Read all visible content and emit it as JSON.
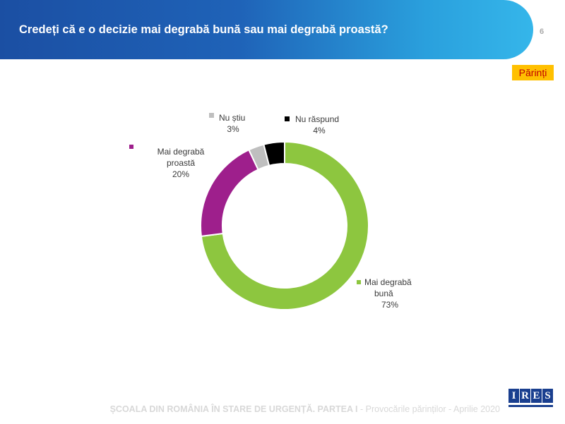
{
  "header": {
    "title": "Credeți că e o decizie mai degrabă bună sau mai degrabă proastă?",
    "page_number": "6",
    "gradient_colors": [
      "#1b4fa3",
      "#35b6ea"
    ]
  },
  "badge": {
    "label": "Părinți",
    "background": "#ffc000",
    "color": "#c00000"
  },
  "chart_data": {
    "type": "pie",
    "donut": true,
    "slices": [
      {
        "line1": "Mai degrabă",
        "line2": "bună",
        "value": 73,
        "label": "73%",
        "color": "#8dc63f"
      },
      {
        "line1": "Mai degrabă",
        "line2": "proastă",
        "value": 20,
        "label": "20%",
        "color": "#9e1f8c"
      },
      {
        "line1": "Nu știu",
        "line2": "",
        "value": 3,
        "label": "3%",
        "color": "#bfbfbf"
      },
      {
        "line1": "Nu răspund",
        "line2": "",
        "value": 4,
        "label": "4%",
        "color": "#000000"
      }
    ]
  },
  "footer": {
    "text_main": "ȘCOALA DIN ROMÂNIA ÎN STARE DE URGENȚĂ. PARTEA I",
    "text_sub": " - Provocările părinților - ",
    "text_date": "Aprilie 2020"
  },
  "logo": {
    "letters": [
      "I",
      "R",
      "E",
      "S"
    ],
    "color": "#1a3f8f"
  }
}
